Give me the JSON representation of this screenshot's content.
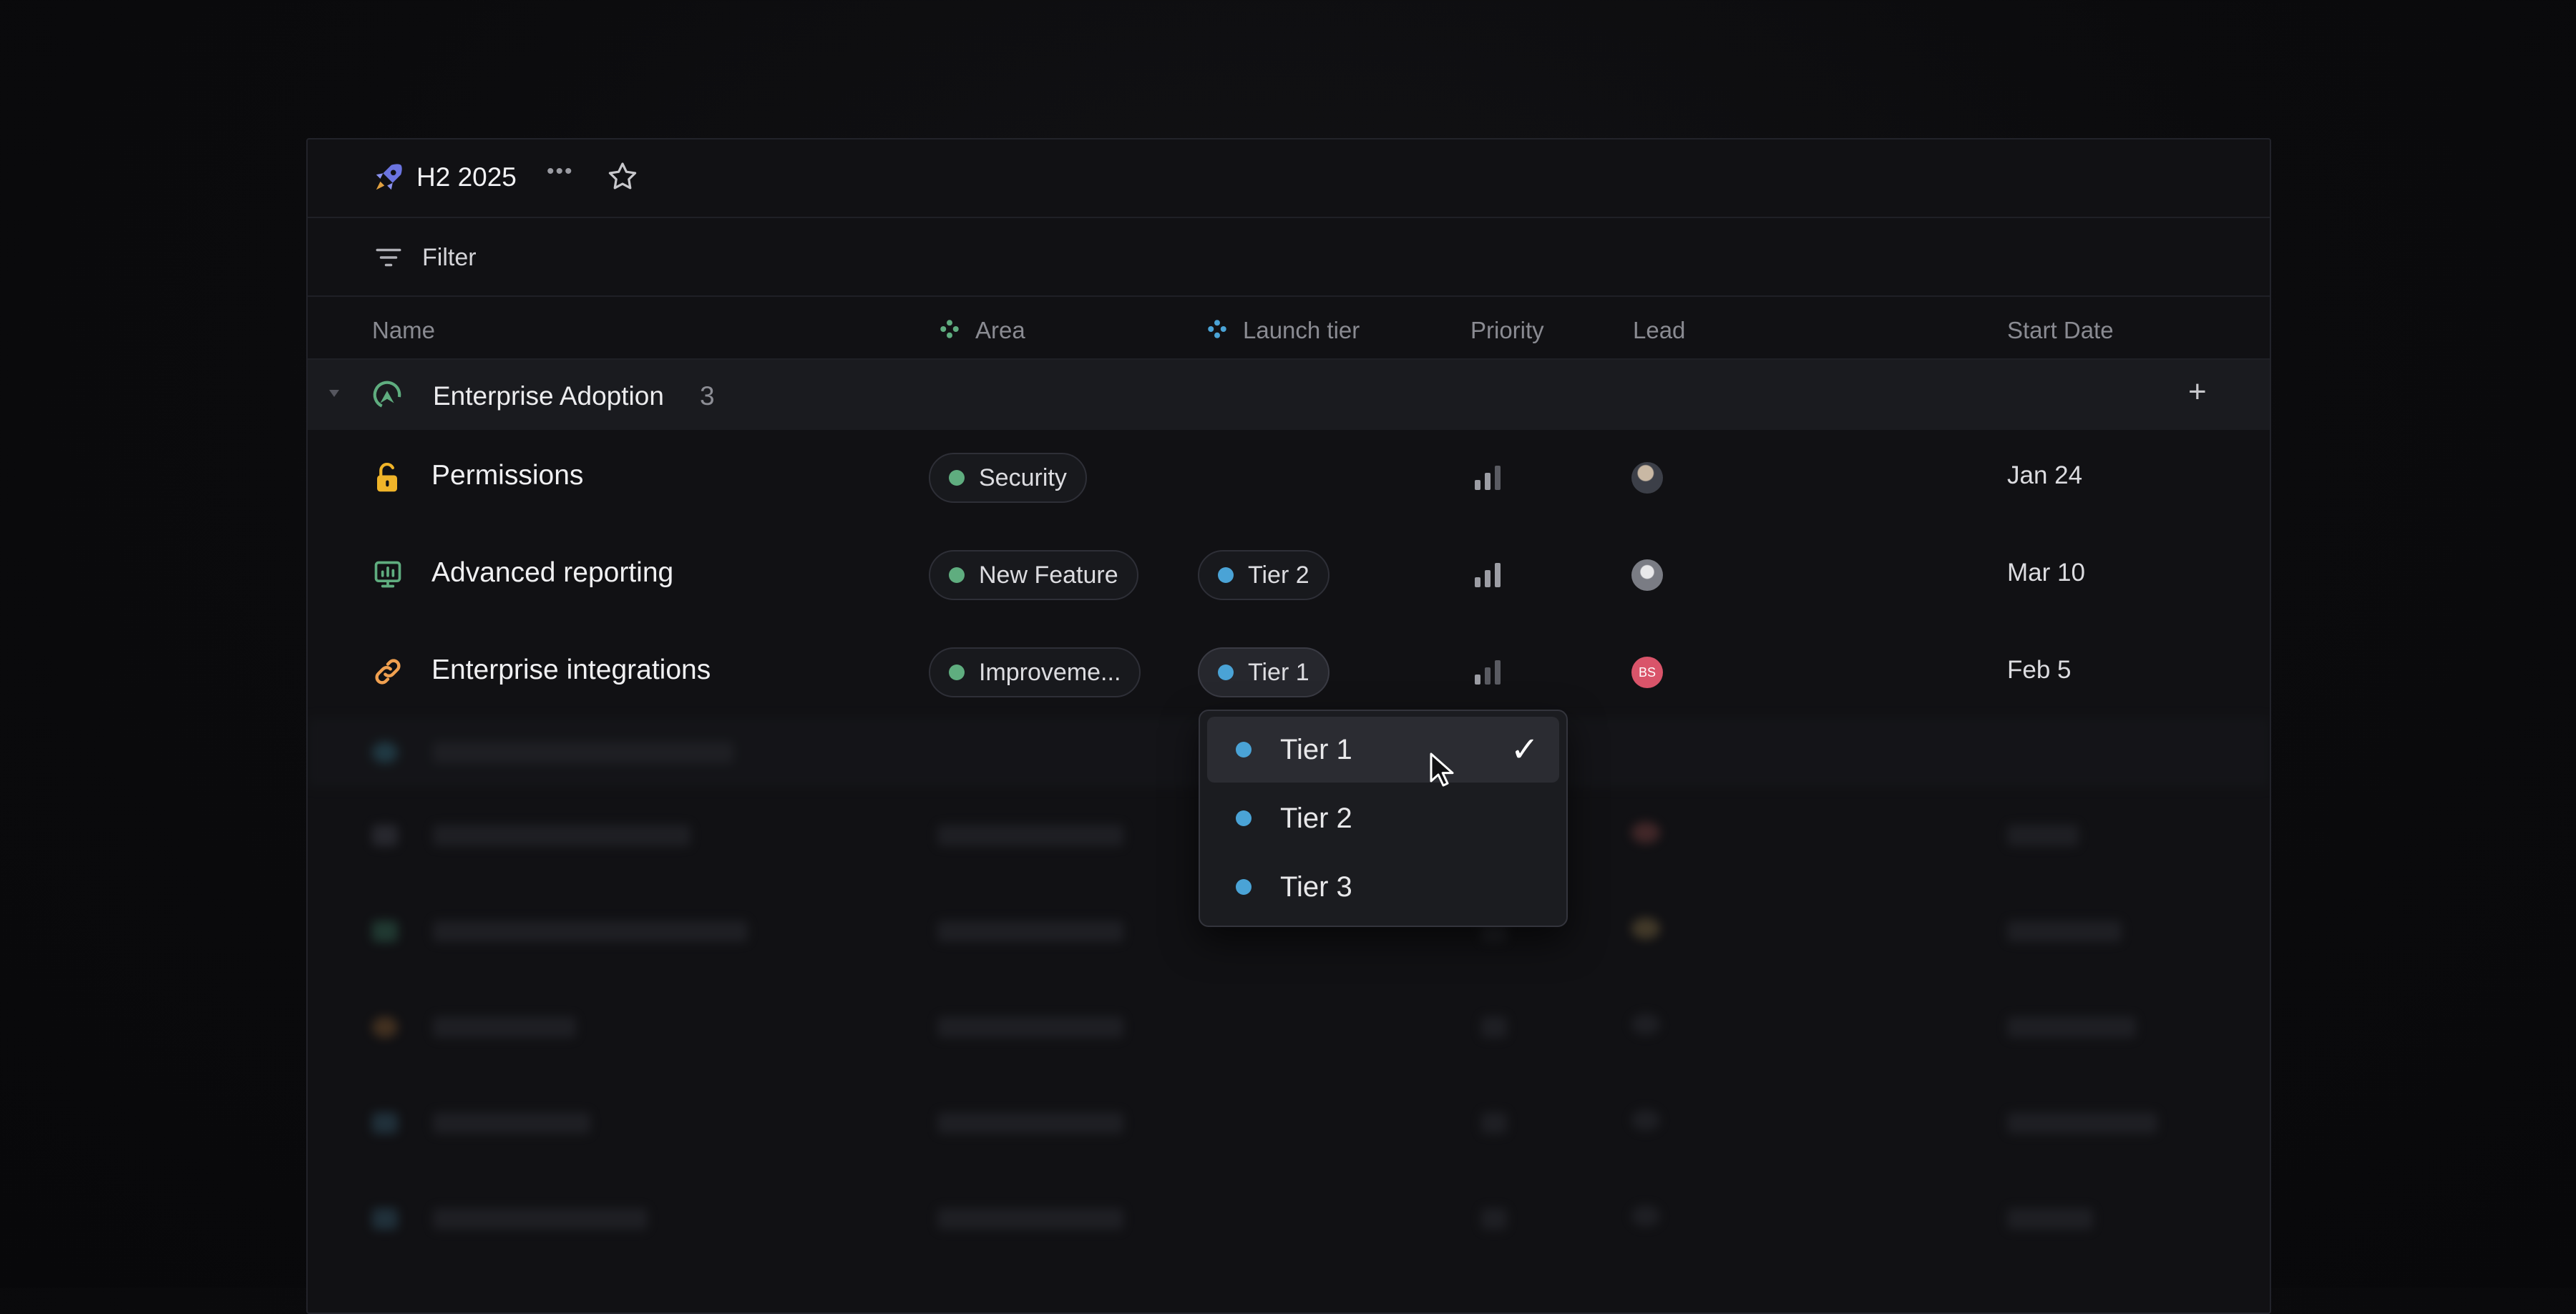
{
  "project": {
    "title": "H2 2025",
    "more_label": "•••"
  },
  "filter": {
    "label": "Filter"
  },
  "columns": {
    "name": "Name",
    "area": "Area",
    "launch_tier": "Launch tier",
    "priority": "Priority",
    "lead": "Lead",
    "start_date": "Start Date"
  },
  "group": {
    "name": "Enterprise Adoption",
    "count": "3",
    "add_label": "+"
  },
  "rows": [
    {
      "name": "Permissions",
      "icon": "lock-icon",
      "area": "Security",
      "tier": "",
      "lead_initials": "",
      "date": "Jan 24"
    },
    {
      "name": "Advanced reporting",
      "icon": "chart-monitor-icon",
      "area": "New Feature",
      "tier": "Tier 2",
      "lead_initials": "",
      "date": "Mar 10"
    },
    {
      "name": "Enterprise integrations",
      "icon": "link-icon",
      "area": "Improveme...",
      "tier": "Tier 1",
      "lead_initials": "BS",
      "date": "Feb 5"
    }
  ],
  "dropdown": {
    "options": [
      {
        "label": "Tier 1",
        "selected": true,
        "check": "✓"
      },
      {
        "label": "Tier 2",
        "selected": false
      },
      {
        "label": "Tier 3",
        "selected": false
      }
    ]
  },
  "colors": {
    "accent_area": "#5fad7f",
    "accent_tier": "#4aa3d6",
    "lead_bs": "#d9546a",
    "lock": "#f0b429",
    "link": "#f0a050",
    "rocket": "#6b74e0"
  }
}
